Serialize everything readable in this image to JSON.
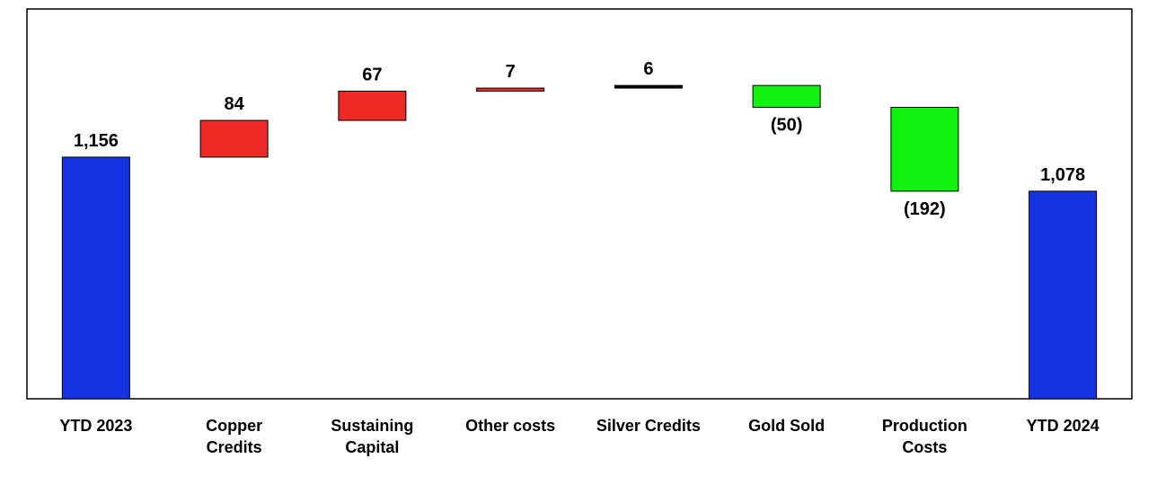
{
  "chart_data": {
    "type": "waterfall",
    "categories": [
      "YTD 2023",
      "Copper Credits",
      "Sustaining Capital",
      "Other costs",
      "Silver Credits",
      "Gold Sold",
      "Production Costs",
      "YTD 2024"
    ],
    "values": [
      1156,
      84,
      67,
      7,
      6,
      -50,
      -192,
      1078
    ],
    "value_labels": [
      "1,156",
      "84",
      "67",
      "7",
      "6",
      "(50)",
      "(192)",
      "1,078"
    ],
    "totals": [
      true,
      false,
      false,
      false,
      false,
      false,
      false,
      true
    ],
    "colors": [
      "#1334e0",
      "#ee2a26",
      "#ee2a26",
      "#ee2a26",
      "#000000",
      "#11f211",
      "#11f211",
      "#1334e0"
    ],
    "ylim": [
      603,
      1495
    ]
  }
}
